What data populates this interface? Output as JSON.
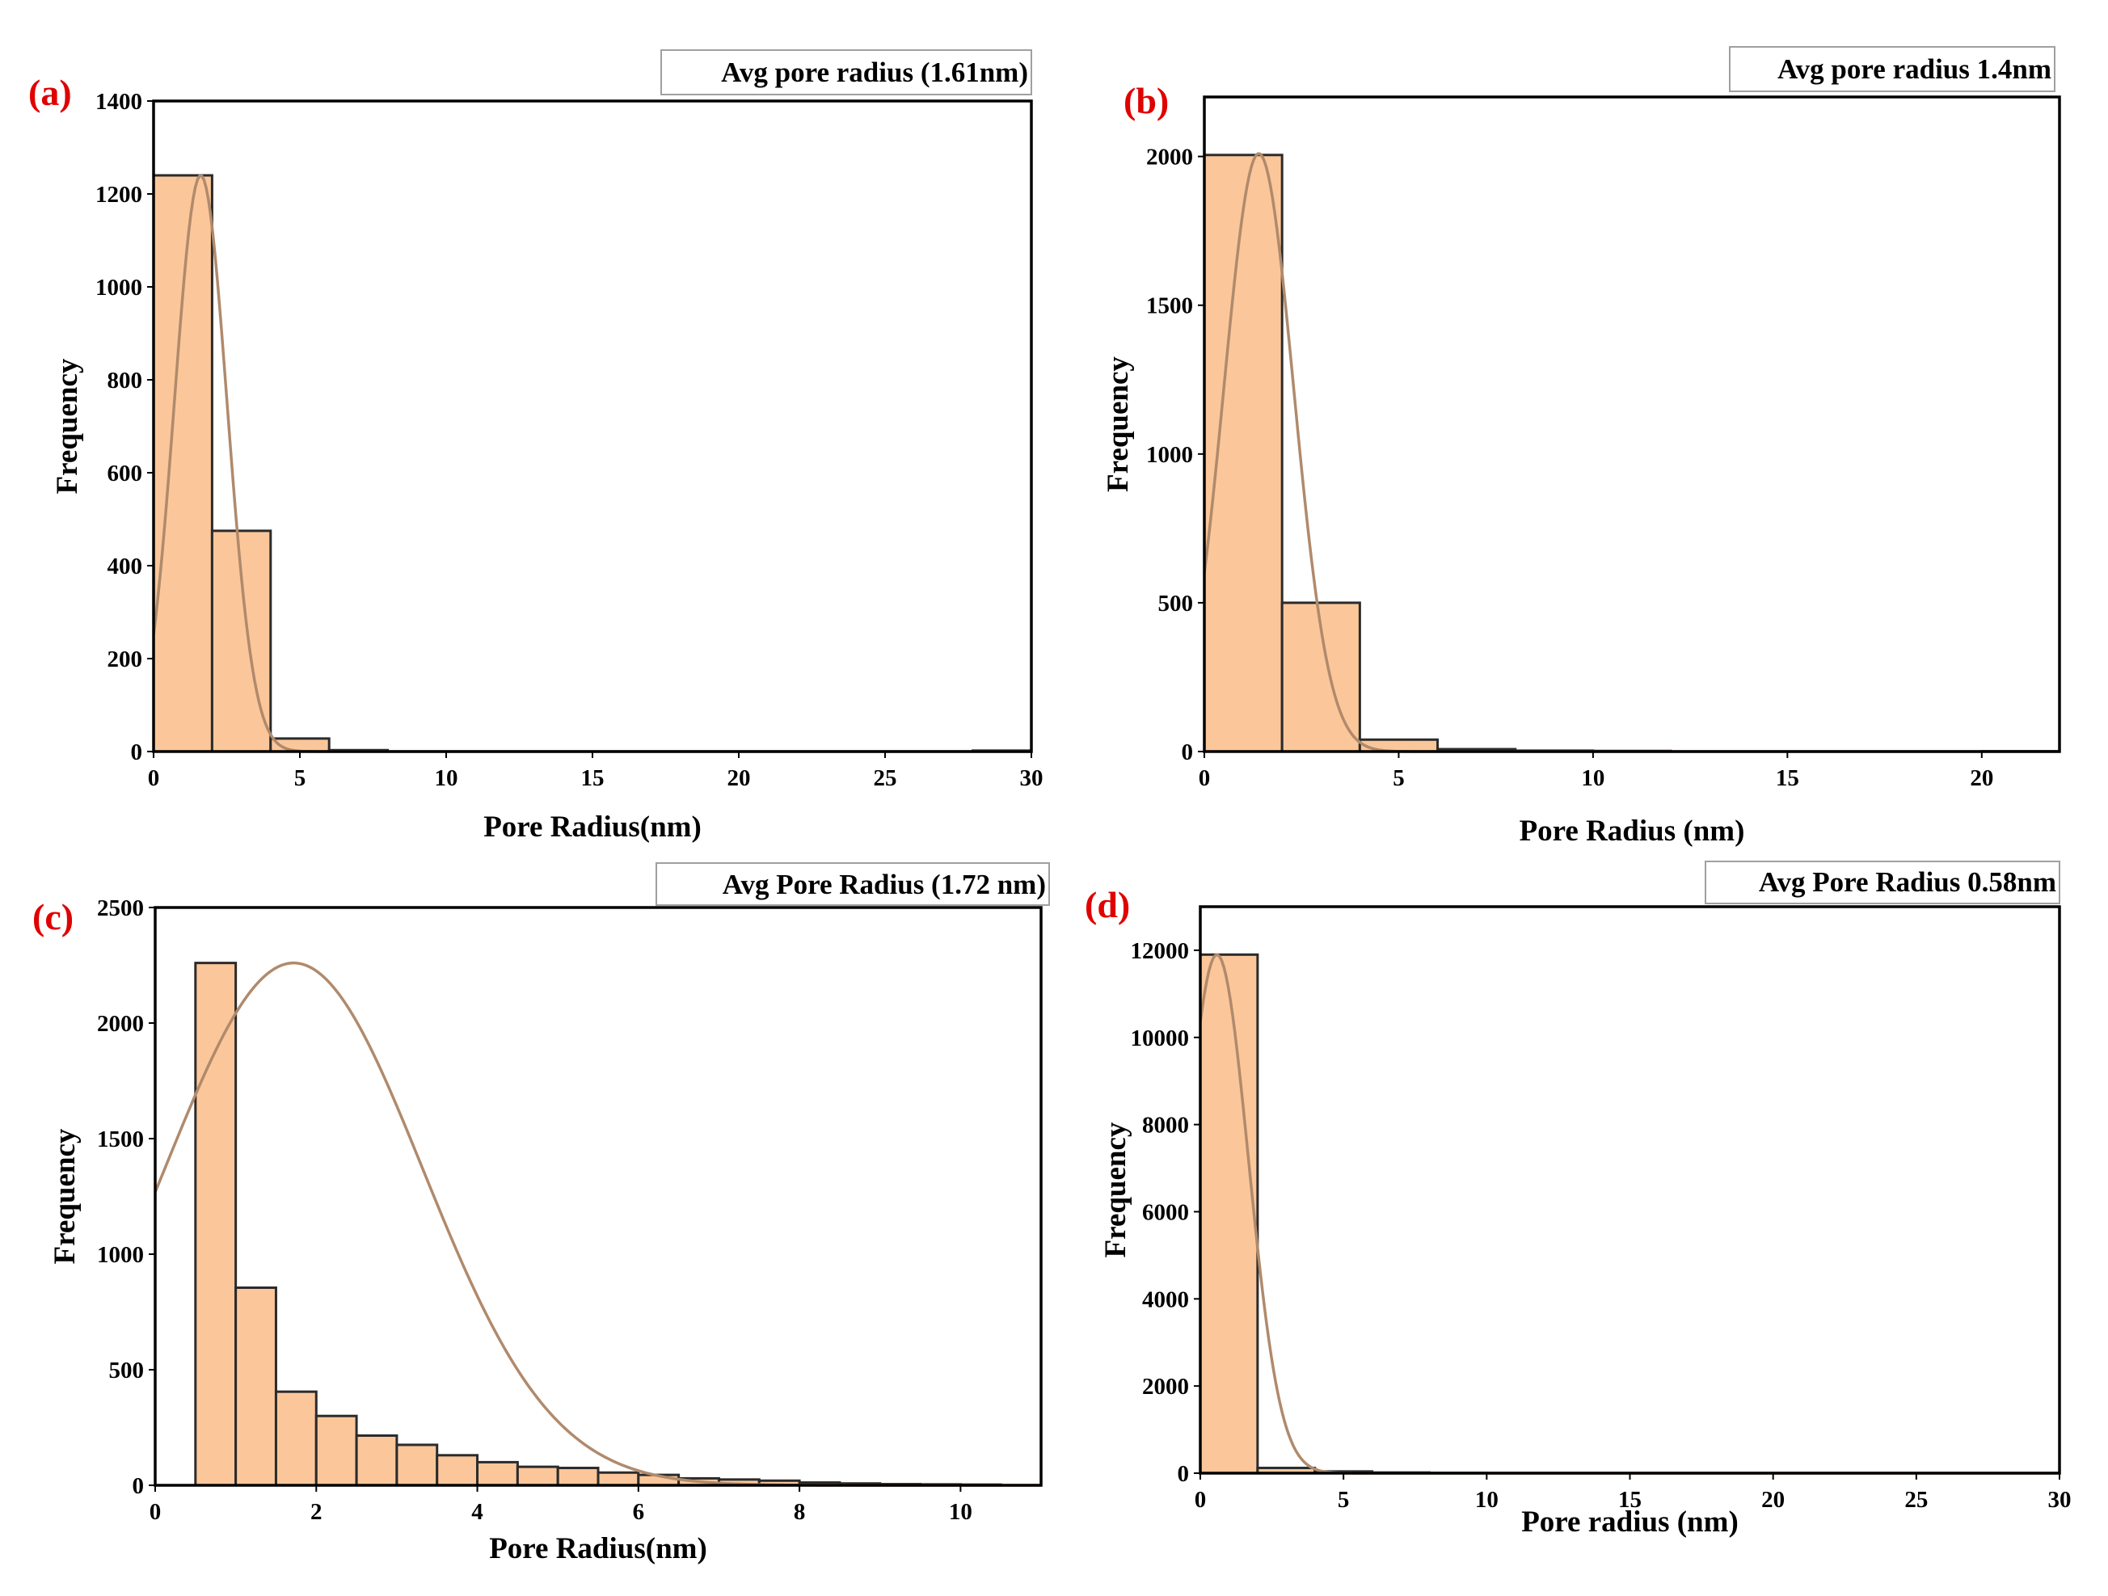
{
  "chart_data": [
    {
      "panel": "(a)",
      "type": "bar",
      "annotation": "Avg pore radius (1.61nm)",
      "xlabel": "Pore Radius(nm)",
      "ylabel": "Frequency",
      "xlim": [
        0,
        30
      ],
      "ylim": [
        0,
        1400
      ],
      "xticks": [
        0,
        5,
        10,
        15,
        20,
        25,
        30
      ],
      "yticks": [
        0,
        200,
        400,
        600,
        800,
        1000,
        1200,
        1400
      ],
      "bins": [
        {
          "x0": 0,
          "x1": 2,
          "value": 1240
        },
        {
          "x0": 2,
          "x1": 4,
          "value": 475
        },
        {
          "x0": 4,
          "x1": 6,
          "value": 28
        },
        {
          "x0": 6,
          "x1": 8,
          "value": 3
        },
        {
          "x0": 28,
          "x1": 30,
          "value": 2
        }
      ],
      "fit": {
        "type": "normal",
        "mean": 1.61,
        "sd": 0.9,
        "peak": 1240
      }
    },
    {
      "panel": "(b)",
      "type": "bar",
      "annotation": "Avg pore radius 1.4nm",
      "xlabel": "Pore Radius (nm)",
      "ylabel": "Frequency",
      "xlim": [
        0,
        22
      ],
      "ylim": [
        0,
        2200
      ],
      "xticks": [
        0,
        5,
        10,
        15,
        20
      ],
      "yticks": [
        0,
        500,
        1000,
        1500,
        2000
      ],
      "bins": [
        {
          "x0": 0,
          "x1": 2,
          "value": 2005
        },
        {
          "x0": 2,
          "x1": 4,
          "value": 500
        },
        {
          "x0": 4,
          "x1": 6,
          "value": 40
        },
        {
          "x0": 6,
          "x1": 8,
          "value": 8
        },
        {
          "x0": 8,
          "x1": 10,
          "value": 3
        },
        {
          "x0": 10,
          "x1": 12,
          "value": 2
        },
        {
          "x0": 20,
          "x1": 22,
          "value": 1
        }
      ],
      "fit": {
        "type": "normal",
        "mean": 1.4,
        "sd": 0.9,
        "peak": 2010
      }
    },
    {
      "panel": "(c)",
      "type": "bar",
      "annotation": "Avg Pore Radius (1.72 nm)",
      "xlabel": "Pore Radius(nm)",
      "ylabel": "Frequency",
      "xlim": [
        0,
        11
      ],
      "ylim": [
        0,
        2500
      ],
      "xticks": [
        0,
        2,
        4,
        6,
        8,
        10
      ],
      "yticks": [
        0,
        500,
        1000,
        1500,
        2000,
        2500
      ],
      "bins": [
        {
          "x0": 0.5,
          "x1": 1.0,
          "value": 2260
        },
        {
          "x0": 1.0,
          "x1": 1.5,
          "value": 855
        },
        {
          "x0": 1.5,
          "x1": 2.0,
          "value": 405
        },
        {
          "x0": 2.0,
          "x1": 2.5,
          "value": 300
        },
        {
          "x0": 2.5,
          "x1": 3.0,
          "value": 215
        },
        {
          "x0": 3.0,
          "x1": 3.5,
          "value": 175
        },
        {
          "x0": 3.5,
          "x1": 4.0,
          "value": 130
        },
        {
          "x0": 4.0,
          "x1": 4.5,
          "value": 100
        },
        {
          "x0": 4.5,
          "x1": 5.0,
          "value": 80
        },
        {
          "x0": 5.0,
          "x1": 5.5,
          "value": 75
        },
        {
          "x0": 5.5,
          "x1": 6.0,
          "value": 55
        },
        {
          "x0": 6.0,
          "x1": 6.5,
          "value": 45
        },
        {
          "x0": 6.5,
          "x1": 7.0,
          "value": 30
        },
        {
          "x0": 7.0,
          "x1": 7.5,
          "value": 25
        },
        {
          "x0": 7.5,
          "x1": 8.0,
          "value": 20
        },
        {
          "x0": 8.0,
          "x1": 8.5,
          "value": 12
        },
        {
          "x0": 8.5,
          "x1": 9.0,
          "value": 8
        },
        {
          "x0": 9.0,
          "x1": 9.5,
          "value": 5
        },
        {
          "x0": 9.5,
          "x1": 10.0,
          "value": 4
        },
        {
          "x0": 10.0,
          "x1": 10.5,
          "value": 3
        }
      ],
      "fit": {
        "type": "normal",
        "mean": 1.72,
        "sd": 1.6,
        "peak": 2260
      }
    },
    {
      "panel": "(d)",
      "type": "bar",
      "annotation": "Avg Pore Radius 0.58nm",
      "xlabel": "Pore radius (nm)",
      "ylabel": "Frequency",
      "xlim": [
        0,
        30
      ],
      "ylim": [
        0,
        13000
      ],
      "xticks": [
        0,
        5,
        10,
        15,
        20,
        25,
        30
      ],
      "yticks": [
        0,
        2000,
        4000,
        6000,
        8000,
        10000,
        12000
      ],
      "bins": [
        {
          "x0": 0,
          "x1": 2,
          "value": 11900
        },
        {
          "x0": 2,
          "x1": 4,
          "value": 120
        },
        {
          "x0": 4,
          "x1": 6,
          "value": 40
        },
        {
          "x0": 6,
          "x1": 8,
          "value": 15
        },
        {
          "x0": 8,
          "x1": 10,
          "value": 5
        }
      ],
      "fit": {
        "type": "normal",
        "mean": 0.58,
        "sd": 1.1,
        "peak": 11900
      }
    }
  ]
}
